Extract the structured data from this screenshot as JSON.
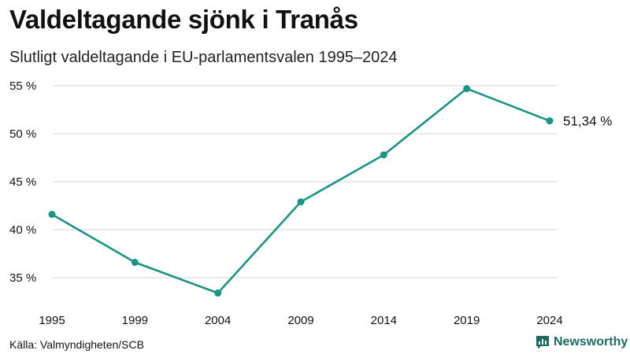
{
  "header": {
    "title": "Valdeltagande sjönk i Tranås",
    "subtitle": "Slutligt valdeltagande i EU-parlamentsvalen 1995–2024"
  },
  "footer": {
    "source": "Källa: Valmyndigheten/SCB",
    "brand": "Newsworthy"
  },
  "colors": {
    "line": "#1a9484",
    "grid": "#dddddd",
    "brand": "#1a6b62"
  },
  "chart_data": {
    "type": "line",
    "title": "Valdeltagande sjönk i Tranås",
    "subtitle": "Slutligt valdeltagande i EU-parlamentsvalen 1995–2024",
    "xlabel": "",
    "ylabel": "",
    "ylim": [
      33,
      56
    ],
    "grid": true,
    "categories": [
      "1995",
      "1999",
      "2004",
      "2009",
      "2014",
      "2019",
      "2024"
    ],
    "yticks": [
      35,
      40,
      45,
      50,
      55
    ],
    "ytick_labels": [
      "35 %",
      "40 %",
      "45 %",
      "50 %",
      "55 %"
    ],
    "series": [
      {
        "name": "Valdeltagande",
        "values": [
          41.6,
          36.6,
          33.4,
          42.9,
          47.8,
          54.7,
          51.34
        ]
      }
    ],
    "end_label": "51,34 %"
  }
}
